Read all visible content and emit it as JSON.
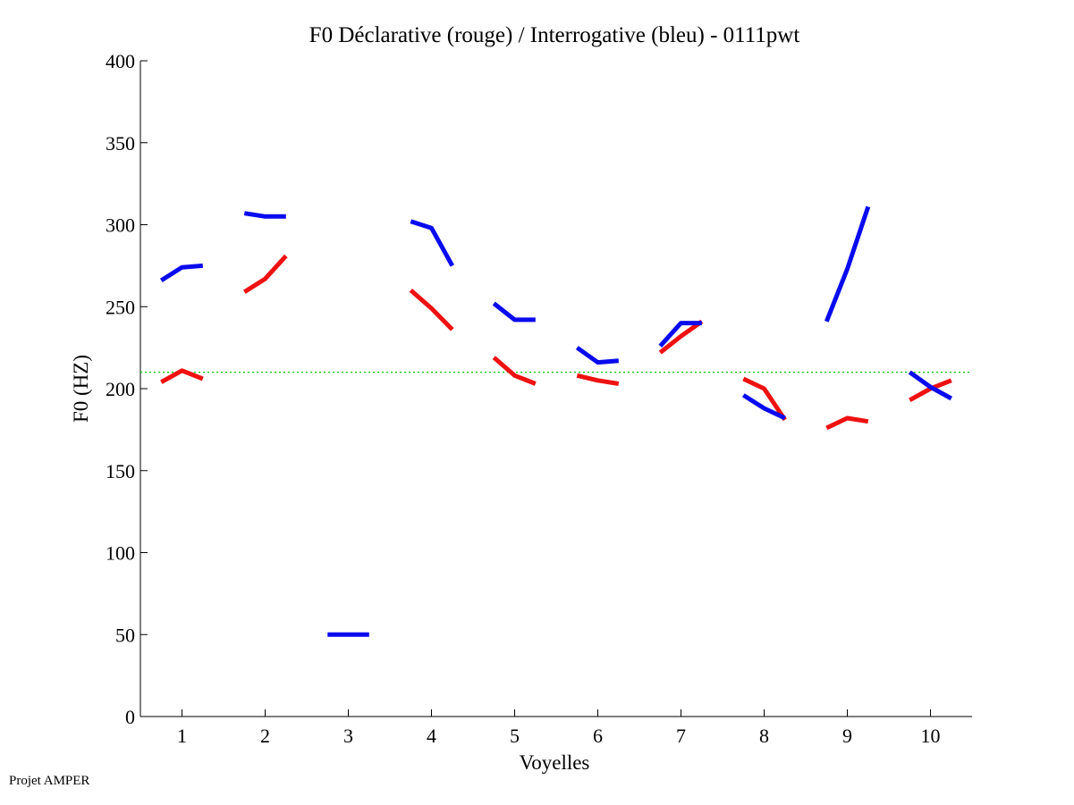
{
  "footer_text": "Projet AMPER",
  "chart_data": {
    "type": "line",
    "title": "F0 Déclarative (rouge) / Interrogative (bleu) - 0111pwt",
    "xlabel": "Voyelles",
    "ylabel": "F0 (HZ)",
    "xlim": [
      0.5,
      10.5
    ],
    "ylim": [
      0,
      400
    ],
    "x_ticks": [
      1,
      2,
      3,
      4,
      5,
      6,
      7,
      8,
      9,
      10
    ],
    "y_ticks": [
      0,
      50,
      100,
      150,
      200,
      250,
      300,
      350,
      400
    ],
    "reference_line": {
      "y": 210,
      "color": "#00cc00",
      "style": "dotted"
    },
    "series": [
      {
        "name": "Déclarative",
        "color": "#ee1111",
        "segments": [
          {
            "vowel": 1,
            "x": [
              0.75,
              1.0,
              1.25
            ],
            "y": [
              204,
              211,
              206
            ]
          },
          {
            "vowel": 2,
            "x": [
              1.75,
              2.0,
              2.25
            ],
            "y": [
              259,
              267,
              281
            ]
          },
          {
            "vowel": 4,
            "x": [
              3.75,
              4.0,
              4.25
            ],
            "y": [
              260,
              249,
              236
            ]
          },
          {
            "vowel": 5,
            "x": [
              4.75,
              5.0,
              5.25
            ],
            "y": [
              219,
              208,
              203
            ]
          },
          {
            "vowel": 6,
            "x": [
              5.75,
              6.0,
              6.25
            ],
            "y": [
              208,
              205,
              203
            ]
          },
          {
            "vowel": 7,
            "x": [
              6.75,
              7.0,
              7.25
            ],
            "y": [
              222,
              232,
              241
            ]
          },
          {
            "vowel": 8,
            "x": [
              7.75,
              8.0,
              8.25
            ],
            "y": [
              206,
              200,
              181
            ]
          },
          {
            "vowel": 9,
            "x": [
              8.75,
              9.0,
              9.25
            ],
            "y": [
              176,
              182,
              180
            ]
          },
          {
            "vowel": 10,
            "x": [
              9.75,
              10.0,
              10.25
            ],
            "y": [
              193,
              200,
              205
            ]
          }
        ]
      },
      {
        "name": "Interrogative",
        "color": "#0a0aee",
        "segments": [
          {
            "vowel": 1,
            "x": [
              0.75,
              1.0,
              1.25
            ],
            "y": [
              266,
              274,
              275
            ]
          },
          {
            "vowel": 2,
            "x": [
              1.75,
              2.0,
              2.25
            ],
            "y": [
              307,
              305,
              305
            ]
          },
          {
            "vowel": 3,
            "x": [
              2.75,
              3.0,
              3.25
            ],
            "y": [
              50,
              50,
              50
            ]
          },
          {
            "vowel": 4,
            "x": [
              3.75,
              4.0,
              4.25
            ],
            "y": [
              302,
              298,
              275
            ]
          },
          {
            "vowel": 5,
            "x": [
              4.75,
              5.0,
              5.25
            ],
            "y": [
              252,
              242,
              242
            ]
          },
          {
            "vowel": 6,
            "x": [
              5.75,
              6.0,
              6.25
            ],
            "y": [
              225,
              216,
              217
            ]
          },
          {
            "vowel": 7,
            "x": [
              6.75,
              7.0,
              7.25
            ],
            "y": [
              226,
              240,
              240
            ]
          },
          {
            "vowel": 8,
            "x": [
              7.75,
              8.0,
              8.25
            ],
            "y": [
              196,
              188,
              182
            ]
          },
          {
            "vowel": 9,
            "x": [
              8.75,
              9.0,
              9.25
            ],
            "y": [
              241,
              273,
              311
            ]
          },
          {
            "vowel": 10,
            "x": [
              9.75,
              10.0,
              10.25
            ],
            "y": [
              210,
              201,
              194
            ]
          }
        ]
      }
    ]
  }
}
